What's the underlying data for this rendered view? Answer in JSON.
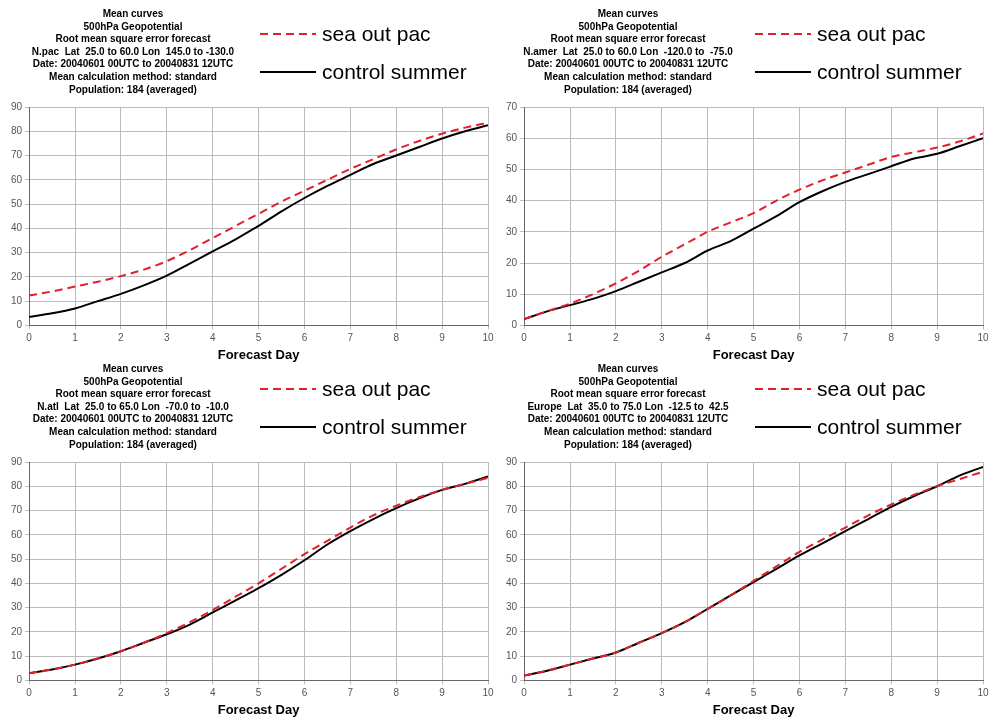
{
  "chart_data": [
    {
      "type": "line",
      "title": "Mean curves",
      "subtitle": "500hPa Geopotential",
      "annotations": [
        "Root mean square error forecast",
        "N.pac  Lat  25.0 to 60.0 Lon  145.0 to -130.0",
        "Date: 20040601 00UTC to 20040831 12UTC",
        "Mean calculation method: standard",
        "Population: 184 (averaged)"
      ],
      "xlabel": "Forecast Day",
      "x": [
        0,
        0.5,
        1,
        1.5,
        2,
        2.5,
        3,
        3.5,
        4,
        4.5,
        5,
        5.5,
        6,
        6.5,
        7,
        7.5,
        8,
        8.5,
        9,
        9.5,
        10
      ],
      "xlim": [
        0,
        10
      ],
      "xticks": [
        0,
        1,
        2,
        3,
        4,
        5,
        6,
        7,
        8,
        9,
        10
      ],
      "ylim": [
        0,
        90
      ],
      "yticks": [
        0,
        10,
        20,
        30,
        40,
        50,
        60,
        70,
        80,
        90
      ],
      "grid": true,
      "legend": "top right",
      "marker": "none",
      "series": [
        {
          "name": "sea out pac",
          "color": "#e0202a",
          "line_style": "dashed",
          "values": [
            12.3,
            14,
            16,
            18,
            20.3,
            23,
            26.5,
            31,
            36,
            41,
            46,
            51,
            55.5,
            60,
            64.5,
            68.5,
            72.5,
            76,
            79,
            81.5,
            83.5
          ]
        },
        {
          "name": "control summer",
          "color": "#000000",
          "line_style": "solid",
          "values": [
            3.5,
            5,
            7,
            10,
            13,
            16.5,
            20.5,
            25.5,
            30.5,
            35.5,
            41,
            47,
            52.5,
            57.5,
            62,
            66.5,
            70,
            73.5,
            77,
            80,
            82.5
          ]
        }
      ]
    },
    {
      "type": "line",
      "title": "Mean curves",
      "subtitle": "500hPa Geopotential",
      "annotations": [
        "Root mean square error forecast",
        "N.amer  Lat  25.0 to 60.0 Lon  -120.0 to  -75.0",
        "Date: 20040601 00UTC to 20040831 12UTC",
        "Mean calculation method: standard",
        "Population: 184 (averaged)"
      ],
      "xlabel": "Forecast Day",
      "x": [
        0,
        0.5,
        1,
        1.5,
        2,
        2.5,
        3,
        3.5,
        4,
        4.5,
        5,
        5.5,
        6,
        6.5,
        7,
        7.5,
        8,
        8.5,
        9,
        9.5,
        10
      ],
      "xlim": [
        0,
        10
      ],
      "xticks": [
        0,
        1,
        2,
        3,
        4,
        5,
        6,
        7,
        8,
        9,
        10
      ],
      "ylim": [
        0,
        70
      ],
      "yticks": [
        0,
        10,
        20,
        30,
        40,
        50,
        60,
        70
      ],
      "grid": true,
      "legend": "top right",
      "marker": "none",
      "series": [
        {
          "name": "sea out pac",
          "color": "#e0202a",
          "line_style": "dashed",
          "values": [
            2,
            4.5,
            7,
            10,
            13.5,
            17.5,
            22,
            26,
            30,
            33,
            36,
            40,
            43.5,
            46.5,
            49,
            51.5,
            54,
            55.5,
            57,
            59,
            61.5
          ]
        },
        {
          "name": "control summer",
          "color": "#000000",
          "line_style": "solid",
          "values": [
            2,
            4.5,
            6.5,
            8.5,
            11,
            14,
            17,
            20,
            24,
            27,
            31,
            35,
            39.5,
            43,
            46,
            48.5,
            51,
            53.5,
            55,
            57.5,
            60
          ]
        }
      ]
    },
    {
      "type": "line",
      "title": "Mean curves",
      "subtitle": "500hPa Geopotential",
      "annotations": [
        "Root mean square error forecast",
        "N.atl  Lat  25.0 to 65.0 Lon  -70.0 to  -10.0",
        "Date: 20040601 00UTC to 20040831 12UTC",
        "Mean calculation method: standard",
        "Population: 184 (averaged)"
      ],
      "xlabel": "Forecast Day",
      "x": [
        0,
        0.5,
        1,
        1.5,
        2,
        2.5,
        3,
        3.5,
        4,
        4.5,
        5,
        5.5,
        6,
        6.5,
        7,
        7.5,
        8,
        8.5,
        9,
        9.5,
        10
      ],
      "xlim": [
        0,
        10
      ],
      "xticks": [
        0,
        1,
        2,
        3,
        4,
        5,
        6,
        7,
        8,
        9,
        10
      ],
      "ylim": [
        0,
        90
      ],
      "yticks": [
        0,
        10,
        20,
        30,
        40,
        50,
        60,
        70,
        80,
        90
      ],
      "grid": true,
      "legend": "top right",
      "marker": "none",
      "series": [
        {
          "name": "sea out pac",
          "color": "#e0202a",
          "line_style": "dashed",
          "values": [
            3,
            4.5,
            6.5,
            9,
            12,
            15.5,
            19.5,
            24,
            29,
            34.5,
            40,
            46,
            52,
            57.5,
            63,
            68,
            72,
            75.5,
            78.5,
            81,
            83.5
          ]
        },
        {
          "name": "control summer",
          "color": "#000000",
          "line_style": "solid",
          "values": [
            3,
            4.5,
            6.5,
            9,
            12,
            15.5,
            19,
            23,
            28,
            33,
            38,
            43.5,
            49.5,
            56,
            61.5,
            66.5,
            71,
            75,
            78.5,
            81,
            84
          ]
        }
      ]
    },
    {
      "type": "line",
      "title": "Mean curves",
      "subtitle": "500hPa Geopotential",
      "annotations": [
        "Root mean square error forecast",
        "Europe  Lat  35.0 to 75.0 Lon  -12.5 to  42.5",
        "Date: 20040601 00UTC to 20040831 12UTC",
        "Mean calculation method: standard",
        "Population: 184 (averaged)"
      ],
      "xlabel": "Forecast Day",
      "x": [
        0,
        0.5,
        1,
        1.5,
        2,
        2.5,
        3,
        3.5,
        4,
        4.5,
        5,
        5.5,
        6,
        6.5,
        7,
        7.5,
        8,
        8.5,
        9,
        9.5,
        10
      ],
      "xlim": [
        0,
        10
      ],
      "xticks": [
        0,
        1,
        2,
        3,
        4,
        5,
        6,
        7,
        8,
        9,
        10
      ],
      "ylim": [
        0,
        90
      ],
      "yticks": [
        0,
        10,
        20,
        30,
        40,
        50,
        60,
        70,
        80,
        90
      ],
      "grid": true,
      "legend": "top right",
      "marker": "none",
      "series": [
        {
          "name": "sea out pac",
          "color": "#e0202a",
          "line_style": "dashed",
          "values": [
            2,
            4,
            6.5,
            9,
            11.5,
            15.5,
            19.5,
            24,
            29.5,
            35,
            41,
            47,
            53,
            58,
            63,
            68,
            72.5,
            76.5,
            80,
            83,
            86
          ]
        },
        {
          "name": "control summer",
          "color": "#000000",
          "line_style": "solid",
          "values": [
            2,
            4,
            6.5,
            9,
            11.5,
            15.5,
            19.5,
            24,
            29.5,
            35,
            40.5,
            46,
            51.5,
            56.5,
            61.5,
            66.5,
            71.5,
            76,
            80,
            84.5,
            88
          ]
        }
      ]
    }
  ]
}
